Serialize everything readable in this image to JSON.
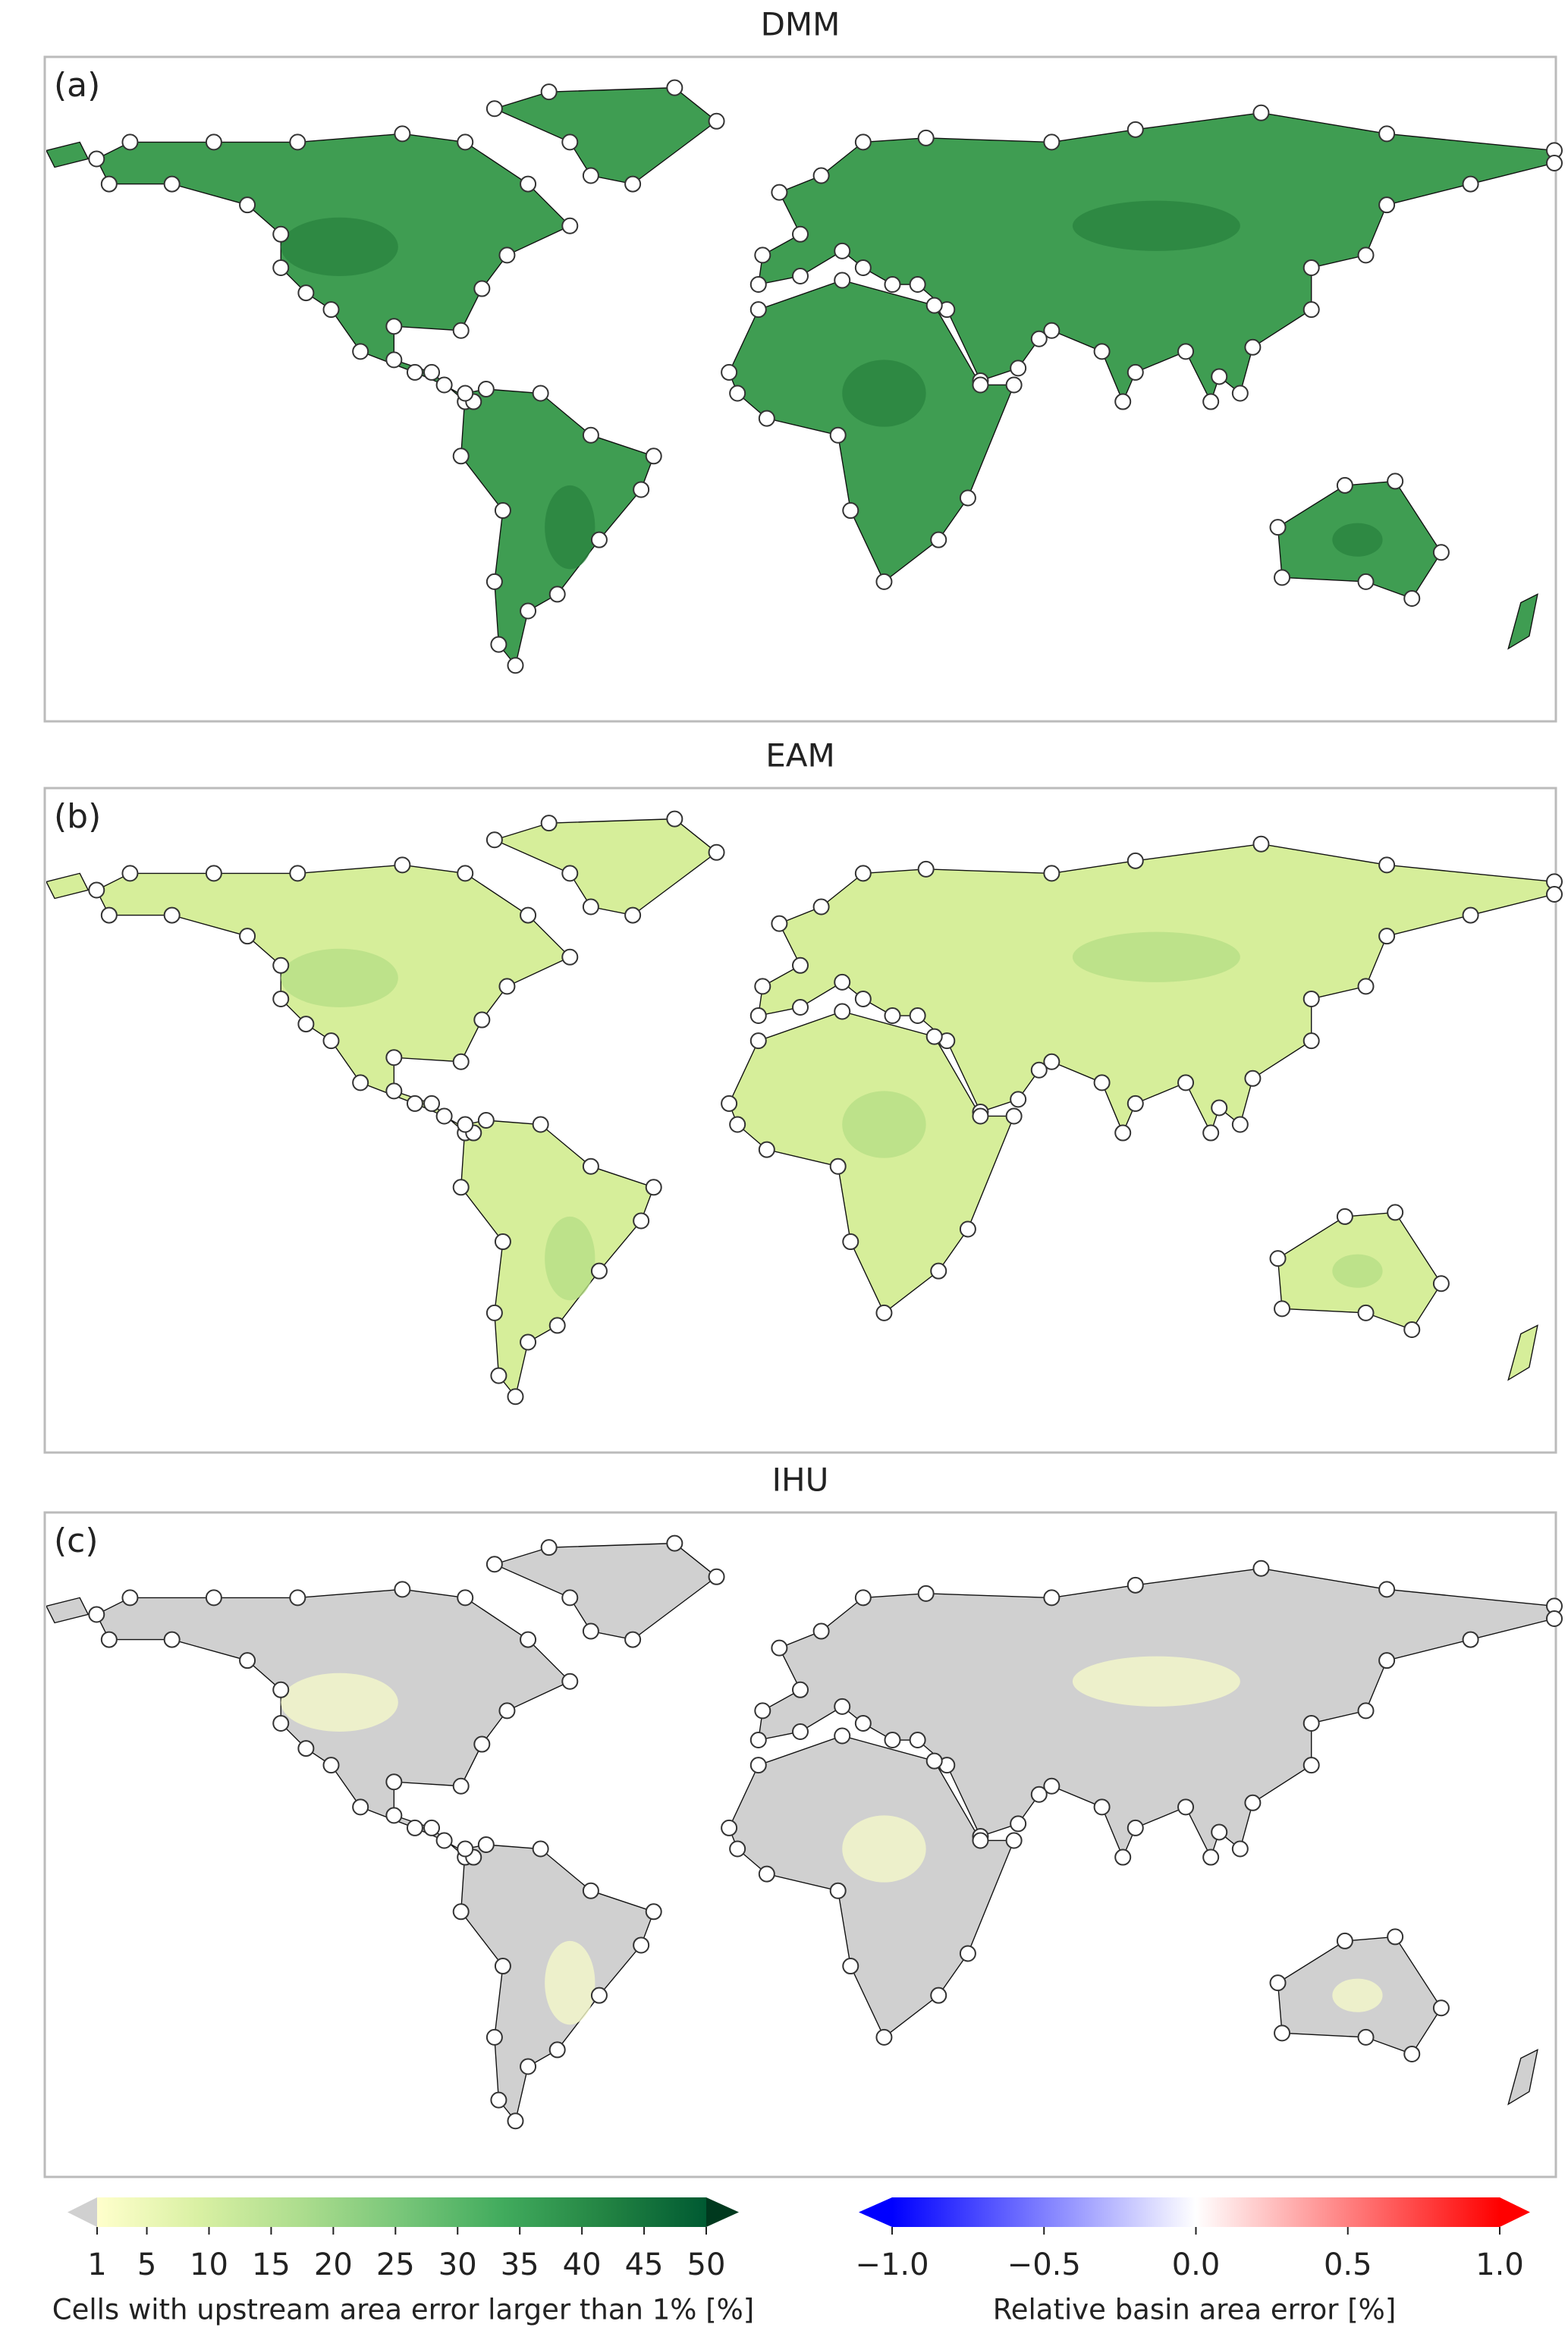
{
  "panels": [
    {
      "title": "DMM",
      "label": "(a)"
    },
    {
      "title": "EAM",
      "label": "(b)"
    },
    {
      "title": "IHU",
      "label": "(c)"
    }
  ],
  "colorbars": [
    {
      "label": "Cells with upstream area error larger than 1% [%]",
      "lim": [
        1,
        50
      ],
      "ticks": [
        1,
        5,
        10,
        15,
        20,
        25,
        30,
        35,
        40,
        45,
        50
      ],
      "colors": [
        "#ffffcc",
        "#d9f0a3",
        "#addd8e",
        "#78c679",
        "#41ab5d",
        "#238443",
        "#005a32"
      ],
      "under_color": "#d0d0d0",
      "over_color": "#00391e"
    },
    {
      "label": "Relative basin area error [%]",
      "lim": [
        -1,
        1
      ],
      "ticks": [
        {
          "value": -1,
          "label": "−1.0"
        },
        {
          "value": -0.5,
          "label": "−0.5"
        },
        {
          "value": 0,
          "label": "0.0"
        },
        {
          "value": 0.5,
          "label": "0.5"
        },
        {
          "value": 1,
          "label": "1.0"
        }
      ],
      "colors": [
        "#0000ff",
        "#ffffff",
        "#ff0000"
      ],
      "under_color": "#0000ff",
      "over_color": "#ff0000"
    }
  ]
}
